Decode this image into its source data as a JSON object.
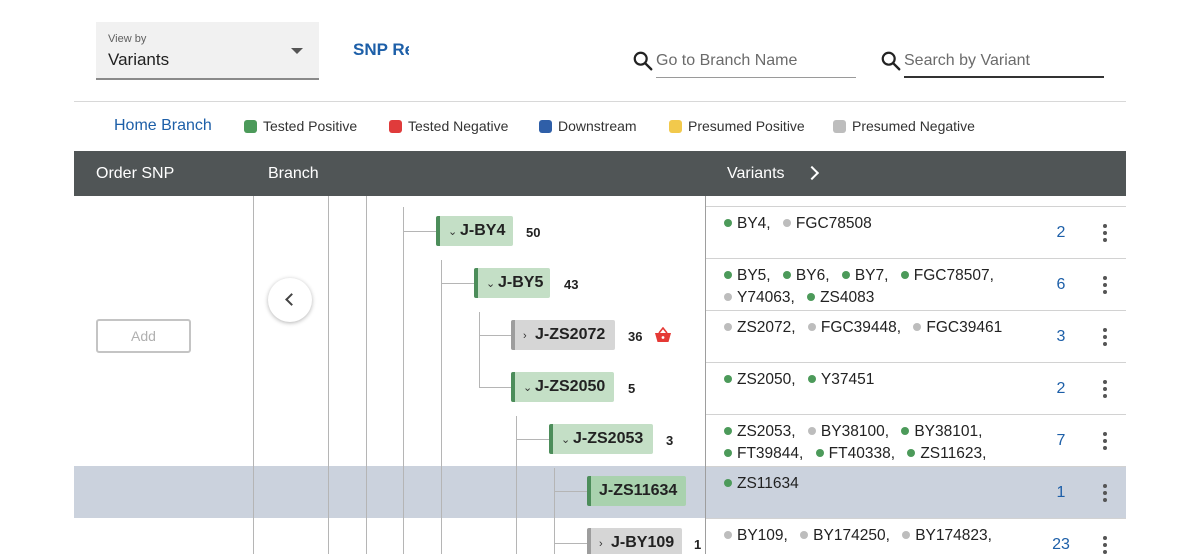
{
  "view_by": {
    "label": "View by",
    "value": "Variants"
  },
  "snp_link": "SNP Re",
  "search_branch": {
    "placeholder": "Go to Branch Name"
  },
  "search_variant": {
    "placeholder": "Search by Variant"
  },
  "legend": {
    "home_branch": "Home Branch",
    "items": [
      {
        "label": "Tested Positive",
        "color": "#4c9a5a"
      },
      {
        "label": "Tested Negative",
        "color": "#e03b3b"
      },
      {
        "label": "Downstream",
        "color": "#2f5fa8"
      },
      {
        "label": "Presumed Positive",
        "color": "#f2c94c"
      },
      {
        "label": "Presumed Negative",
        "color": "#bdbdbd"
      }
    ]
  },
  "table": {
    "headers": {
      "order_snp": "Order SNP",
      "branch": "Branch",
      "variants": "Variants"
    },
    "add_label": "Add"
  },
  "colors": {
    "tested_positive": "#4c9a5a",
    "presumed_negative": "#bdbdbd",
    "link": "#1d5fa8",
    "highlight": "#cbd2dd"
  },
  "branches": [
    {
      "name": "J-BY4",
      "count": "50"
    },
    {
      "name": "J-BY5",
      "count": "43"
    },
    {
      "name": "J-ZS2072",
      "count": "36"
    },
    {
      "name": "J-ZS2050",
      "count": "5"
    },
    {
      "name": "J-ZS2053",
      "count": "3"
    },
    {
      "name": "J-ZS11634",
      "count": ""
    },
    {
      "name": "J-BY109",
      "count": "1"
    }
  ],
  "variant_rows": [
    {
      "count": "2",
      "variants": [
        {
          "text": "BY4,",
          "status": "positive"
        },
        {
          "text": "FGC78508",
          "status": "negative"
        }
      ]
    },
    {
      "count": "6",
      "variants": [
        {
          "text": "BY5,",
          "status": "positive"
        },
        {
          "text": "BY6,",
          "status": "positive"
        },
        {
          "text": "BY7,",
          "status": "positive"
        },
        {
          "text": "FGC78507,",
          "status": "positive"
        },
        {
          "text": "Y74063,",
          "status": "negative"
        },
        {
          "text": "ZS4083",
          "status": "positive"
        }
      ]
    },
    {
      "count": "3",
      "variants": [
        {
          "text": "ZS2072,",
          "status": "negative"
        },
        {
          "text": "FGC39448,",
          "status": "negative"
        },
        {
          "text": "FGC39461",
          "status": "negative"
        }
      ]
    },
    {
      "count": "2",
      "variants": [
        {
          "text": "ZS2050,",
          "status": "positive"
        },
        {
          "text": "Y37451",
          "status": "positive"
        }
      ]
    },
    {
      "count": "7",
      "variants": [
        {
          "text": "ZS2053,",
          "status": "positive"
        },
        {
          "text": "BY38100,",
          "status": "negative"
        },
        {
          "text": "BY38101,",
          "status": "positive"
        },
        {
          "text": "FT39844,",
          "status": "positive"
        },
        {
          "text": "FT40338,",
          "status": "positive"
        },
        {
          "text": "ZS11623,",
          "status": "positive"
        }
      ]
    },
    {
      "count": "1",
      "variants": [
        {
          "text": "ZS11634",
          "status": "positive"
        }
      ]
    },
    {
      "count": "23",
      "variants": [
        {
          "text": "BY109,",
          "status": "negative"
        },
        {
          "text": "BY174250,",
          "status": "negative"
        },
        {
          "text": "BY174823,",
          "status": "negative"
        }
      ]
    }
  ]
}
